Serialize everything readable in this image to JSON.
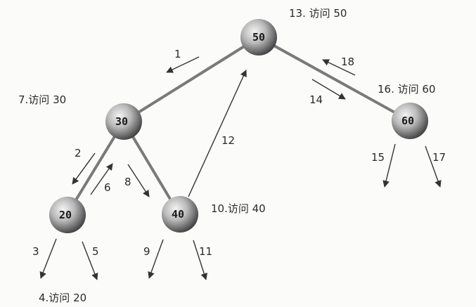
{
  "nodes": [
    {
      "id": "n50",
      "label": "50"
    },
    {
      "id": "n30",
      "label": "30"
    },
    {
      "id": "n60",
      "label": "60"
    },
    {
      "id": "n20",
      "label": "20"
    },
    {
      "id": "n40",
      "label": "40"
    }
  ],
  "visit_labels": [
    {
      "id": "v50",
      "text": "13. 访问 50"
    },
    {
      "id": "v30",
      "text": "7.访问 30"
    },
    {
      "id": "v60",
      "text": "16. 访问 60"
    },
    {
      "id": "v40",
      "text": "10.访问 40"
    },
    {
      "id": "v20",
      "text": "4.访问 20"
    }
  ],
  "steps": [
    "1",
    "2",
    "5",
    "6",
    "8",
    "9",
    "11",
    "12",
    "14",
    "15",
    "17",
    "18",
    "3"
  ]
}
